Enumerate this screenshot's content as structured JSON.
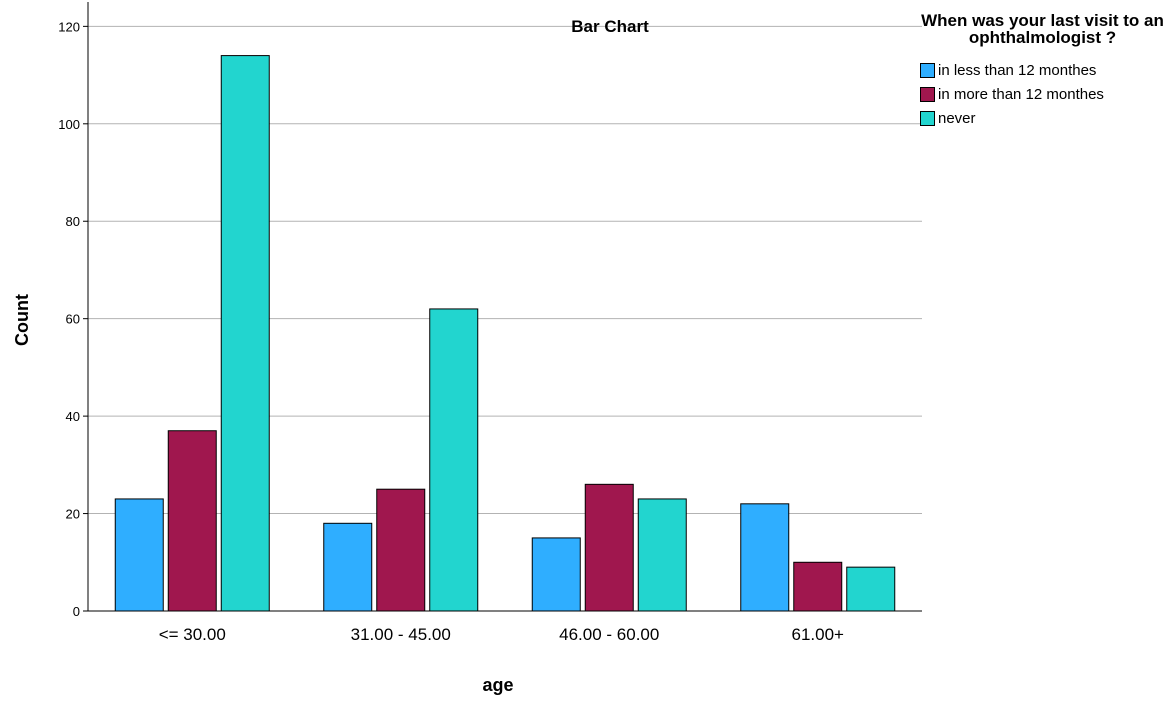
{
  "chart_data": {
    "type": "bar",
    "title": "Bar Chart",
    "xlabel": "age",
    "ylabel": "Count",
    "categories": [
      "<= 30.00",
      "31.00 - 45.00",
      "46.00 - 60.00",
      "61.00+"
    ],
    "ylim": [
      0,
      125
    ],
    "yticks": [
      0,
      20,
      40,
      60,
      80,
      100,
      120
    ],
    "grid": true,
    "legend_title": "When was your last visit to an ophthalmologist ?",
    "legend_position": "top-right",
    "series": [
      {
        "name": "in less than 12 monthes",
        "color": "#2FAEFF",
        "values": [
          23,
          18,
          15,
          22
        ]
      },
      {
        "name": "in more than 12 monthes",
        "color": "#A0174E",
        "values": [
          37,
          25,
          26,
          10
        ]
      },
      {
        "name": "never",
        "color": "#22D5CF",
        "values": [
          114,
          62,
          23,
          9
        ]
      }
    ]
  }
}
